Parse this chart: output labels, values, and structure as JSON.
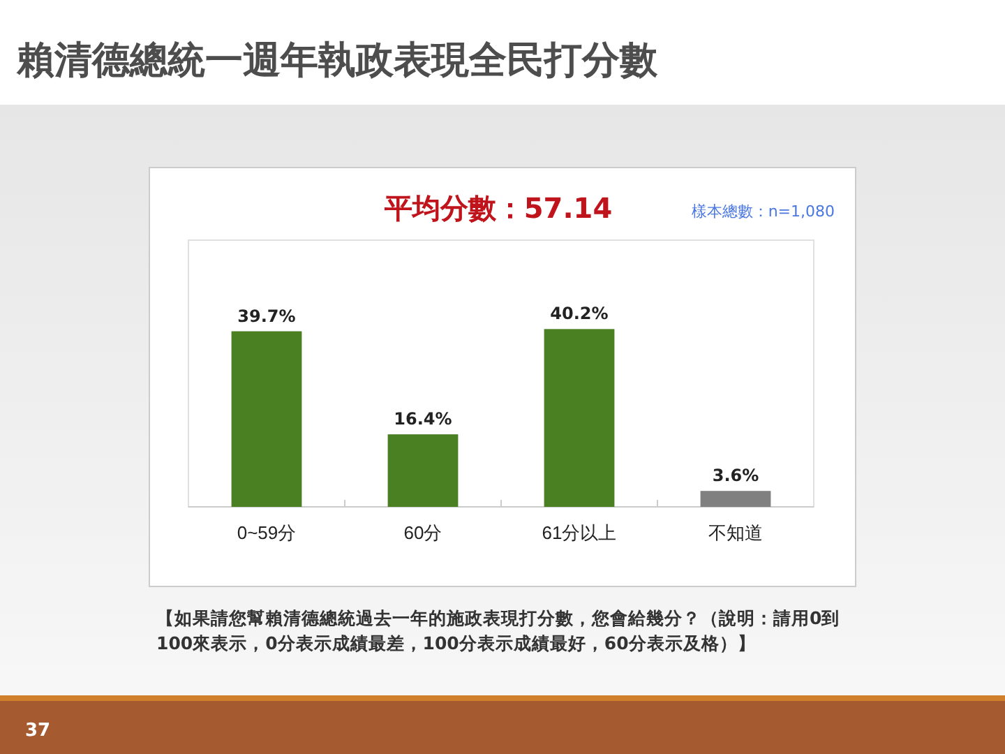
{
  "chart_data": {
    "type": "bar",
    "title": "賴清德總統一週年執政表現全民打分數",
    "subtitle": "平均分數：57.14",
    "categories": [
      "0~59分",
      "60分",
      "61分以上",
      "不知道"
    ],
    "values": [
      39.7,
      16.4,
      40.2,
      3.6
    ],
    "colors": [
      "#4a7f22",
      "#4a7f22",
      "#4a7f22",
      "#808080"
    ],
    "value_labels": [
      "39.7%",
      "16.4%",
      "40.2%",
      "3.6%"
    ],
    "tick_labels": "x",
    "annotations": [
      "樣本總數：n=1,080",
      "【如果請您幫賴清德總統過去一年的施政表現打分數，您會給幾分？（說明：請用0到100來表示，0分表示成績最差，100分表示成績最好，60分表示及格）】",
      "37"
    ]
  }
}
